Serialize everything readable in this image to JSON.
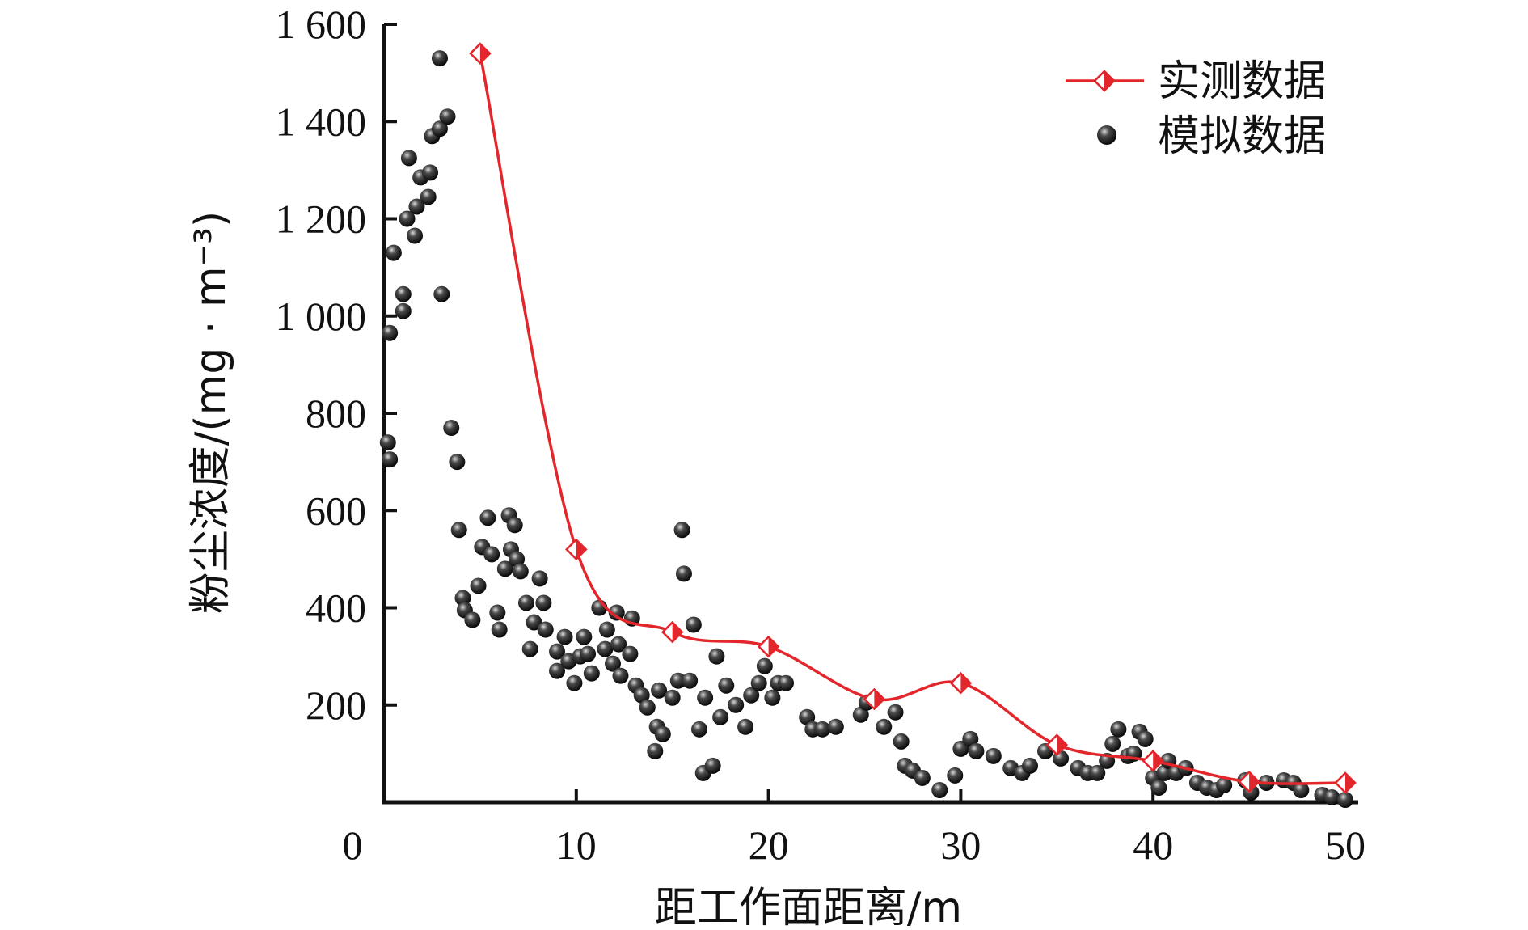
{
  "chart_data": {
    "type": "scatter+line",
    "title": "",
    "xlabel": "距工作面距离/m",
    "ylabel": "粉尘浓度/(mg · m⁻³)",
    "xlim": [
      0,
      50
    ],
    "ylim": [
      0,
      1600
    ],
    "x_ticks": [
      0,
      10,
      20,
      30,
      40,
      50
    ],
    "y_ticks": [
      200,
      400,
      600,
      800,
      1000,
      1200,
      1400,
      1600
    ],
    "x_tick_labels": [
      "0",
      "10",
      "20",
      "30",
      "40",
      "50"
    ],
    "y_tick_labels": [
      "200",
      "400",
      "600",
      "800",
      "1 000",
      "1 200",
      "1 400",
      "1 600"
    ],
    "grid": false,
    "legend_position": "top-right",
    "colors": {
      "measured": "#e3262b",
      "simulated": "#1a1a1a",
      "axis": "#111111"
    },
    "series": [
      {
        "name": "实测数据",
        "kind": "line-diamond",
        "x": [
          5,
          10,
          15,
          20,
          25.5,
          30,
          35,
          40,
          45,
          50
        ],
        "y": [
          1540,
          520,
          350,
          320,
          212,
          245,
          118,
          85,
          42,
          40
        ]
      },
      {
        "name": "模拟数据",
        "kind": "scatter",
        "points": [
          [
            0.2,
            740
          ],
          [
            0.3,
            705
          ],
          [
            0.3,
            965
          ],
          [
            0.5,
            1130
          ],
          [
            1,
            1010
          ],
          [
            1,
            1045
          ],
          [
            1.2,
            1200
          ],
          [
            1.3,
            1325
          ],
          [
            1.6,
            1165
          ],
          [
            1.7,
            1225
          ],
          [
            1.9,
            1285
          ],
          [
            2.3,
            1245
          ],
          [
            2.4,
            1295
          ],
          [
            2.5,
            1370
          ],
          [
            2.9,
            1385
          ],
          [
            2.9,
            1530
          ],
          [
            3.0,
            1045
          ],
          [
            3.3,
            1410
          ],
          [
            3.5,
            770
          ],
          [
            3.8,
            700
          ],
          [
            3.9,
            560
          ],
          [
            4.1,
            420
          ],
          [
            4.2,
            395
          ],
          [
            4.6,
            375
          ],
          [
            4.9,
            445
          ],
          [
            5.1,
            525
          ],
          [
            5.4,
            585
          ],
          [
            5.6,
            510
          ],
          [
            5.9,
            390
          ],
          [
            6.0,
            355
          ],
          [
            6.3,
            480
          ],
          [
            6.5,
            590
          ],
          [
            6.6,
            520
          ],
          [
            6.8,
            570
          ],
          [
            6.9,
            500
          ],
          [
            7.1,
            475
          ],
          [
            7.4,
            410
          ],
          [
            7.6,
            315
          ],
          [
            7.8,
            370
          ],
          [
            8.1,
            460
          ],
          [
            8.3,
            410
          ],
          [
            8.4,
            355
          ],
          [
            9.0,
            310
          ],
          [
            9.0,
            270
          ],
          [
            9.4,
            340
          ],
          [
            9.6,
            290
          ],
          [
            9.9,
            245
          ],
          [
            10.2,
            300
          ],
          [
            10.4,
            340
          ],
          [
            10.6,
            305
          ],
          [
            10.8,
            265
          ],
          [
            11.2,
            400
          ],
          [
            11.5,
            315
          ],
          [
            11.6,
            355
          ],
          [
            11.9,
            285
          ],
          [
            12.1,
            390
          ],
          [
            12.2,
            325
          ],
          [
            12.3,
            260
          ],
          [
            12.8,
            305
          ],
          [
            12.9,
            378
          ],
          [
            13.1,
            240
          ],
          [
            13.4,
            220
          ],
          [
            13.7,
            195
          ],
          [
            14.1,
            105
          ],
          [
            14.2,
            155
          ],
          [
            14.3,
            230
          ],
          [
            14.5,
            140
          ],
          [
            15.0,
            215
          ],
          [
            15.3,
            250
          ],
          [
            15.5,
            560
          ],
          [
            15.6,
            470
          ],
          [
            15.9,
            250
          ],
          [
            16.1,
            365
          ],
          [
            16.4,
            150
          ],
          [
            16.6,
            60
          ],
          [
            16.7,
            215
          ],
          [
            17.1,
            75
          ],
          [
            17.3,
            300
          ],
          [
            17.5,
            175
          ],
          [
            17.8,
            240
          ],
          [
            18.3,
            200
          ],
          [
            18.8,
            155
          ],
          [
            19.1,
            220
          ],
          [
            19.5,
            245
          ],
          [
            19.8,
            280
          ],
          [
            20.2,
            215
          ],
          [
            20.5,
            245
          ],
          [
            20.9,
            245
          ],
          [
            22.0,
            175
          ],
          [
            22.3,
            150
          ],
          [
            22.8,
            150
          ],
          [
            23.5,
            155
          ],
          [
            24.8,
            180
          ],
          [
            25.1,
            205
          ],
          [
            26.0,
            155
          ],
          [
            26.6,
            185
          ],
          [
            26.9,
            125
          ],
          [
            27.1,
            75
          ],
          [
            27.5,
            65
          ],
          [
            28.0,
            50
          ],
          [
            28.9,
            25
          ],
          [
            29.7,
            55
          ],
          [
            30.0,
            110
          ],
          [
            30.5,
            130
          ],
          [
            30.8,
            105
          ],
          [
            31.7,
            95
          ],
          [
            32.6,
            70
          ],
          [
            33.2,
            60
          ],
          [
            33.6,
            75
          ],
          [
            34.4,
            105
          ],
          [
            35.2,
            90
          ],
          [
            36.1,
            70
          ],
          [
            36.6,
            60
          ],
          [
            37.1,
            60
          ],
          [
            37.6,
            85
          ],
          [
            37.9,
            120
          ],
          [
            38.2,
            150
          ],
          [
            38.7,
            95
          ],
          [
            39.0,
            100
          ],
          [
            39.3,
            145
          ],
          [
            39.6,
            130
          ],
          [
            40.0,
            50
          ],
          [
            40.3,
            30
          ],
          [
            40.6,
            60
          ],
          [
            40.8,
            85
          ],
          [
            41.2,
            60
          ],
          [
            41.7,
            70
          ],
          [
            42.3,
            40
          ],
          [
            42.8,
            30
          ],
          [
            43.3,
            25
          ],
          [
            43.7,
            35
          ],
          [
            44.8,
            45
          ],
          [
            45.1,
            20
          ],
          [
            45.9,
            40
          ],
          [
            46.8,
            45
          ],
          [
            47.3,
            40
          ],
          [
            47.7,
            25
          ],
          [
            48.8,
            15
          ],
          [
            49.3,
            10
          ],
          [
            50.0,
            5
          ]
        ]
      }
    ]
  }
}
